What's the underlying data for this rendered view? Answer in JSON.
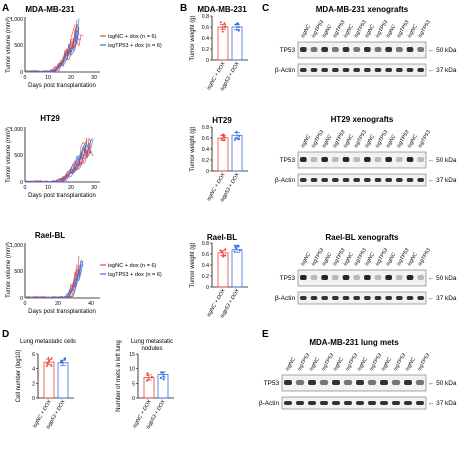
{
  "panels": {
    "A": "A",
    "B": "B",
    "C": "C",
    "D": "D",
    "E": "E"
  },
  "colors": {
    "nc": "#e8453c",
    "tp53": "#3a6fd8",
    "grey": "#888888"
  },
  "growth": {
    "xlabel": "Days post transplantation",
    "ylabel": "Tumor volume (mm³)",
    "legend_nc": "isgNC + dox (n = 6)",
    "legend_tp53": "isgTP53 + dox (n = 6)",
    "charts": [
      {
        "title": "MDA-MB-231",
        "xticks": [
          "0",
          "10",
          "20",
          "30"
        ],
        "yticks": [
          "0",
          "500",
          "1,000"
        ]
      },
      {
        "title": "HT29",
        "xticks": [
          "0",
          "10",
          "20",
          "30"
        ],
        "yticks": [
          "0",
          "500",
          "1,000"
        ]
      },
      {
        "title": "Rael-BL",
        "xticks": [
          "0",
          "20",
          "40"
        ],
        "yticks": [
          "0",
          "500",
          "1,000"
        ]
      }
    ]
  },
  "weight": {
    "ylabel": "Tumor weight (g)",
    "cat_nc": "isgNC + DOX",
    "cat_tp53": "isgp53 + DOX",
    "charts": [
      {
        "title": "MDA-MB-231",
        "yticks": [
          "0",
          "0.2",
          "0.4",
          "0.6",
          "0.8"
        ]
      },
      {
        "title": "HT29",
        "yticks": [
          "0",
          "0.2",
          "0.4",
          "0.6",
          "0.8"
        ]
      },
      {
        "title": "Rael-BL",
        "yticks": [
          "0",
          "0.2",
          "0.4",
          "0.6",
          "0.8"
        ]
      }
    ]
  },
  "chart_data": [
    {
      "type": "bar",
      "title": "MDA-MB-231",
      "ylabel": "Tumor weight (g)",
      "categories": [
        "isgNC + DOX",
        "isgp53 + DOX"
      ],
      "values": [
        0.6,
        0.6
      ],
      "ylim": [
        0,
        0.8
      ]
    },
    {
      "type": "bar",
      "title": "HT29",
      "ylabel": "Tumor weight (g)",
      "categories": [
        "isgNC + DOX",
        "isgp53 + DOX"
      ],
      "values": [
        0.6,
        0.65
      ],
      "ylim": [
        0,
        0.8
      ]
    },
    {
      "type": "bar",
      "title": "Rael-BL",
      "ylabel": "Tumor weight (g)",
      "categories": [
        "isgNC + DOX",
        "isgp53 + DOX"
      ],
      "values": [
        0.62,
        0.68
      ],
      "ylim": [
        0,
        0.8
      ]
    },
    {
      "type": "bar",
      "title": "Lung metastatic cells",
      "ylabel": "Cell number (log10)",
      "categories": [
        "isgNC + DOX",
        "isgp53 + DOX"
      ],
      "values": [
        4.9,
        4.8
      ],
      "ylim": [
        0,
        6
      ]
    },
    {
      "type": "bar",
      "title": "Lung metastatic nodules",
      "ylabel": "Number of mets in left lung",
      "categories": [
        "isgNC + DOX",
        "isgp53 + DOX"
      ],
      "values": [
        7,
        8
      ],
      "ylim": [
        0,
        15
      ]
    }
  ],
  "blots": {
    "lanes_c": [
      "isgNC",
      "isgTP53",
      "isgNC",
      "isgTP53",
      "isgNC",
      "isgTP53",
      "isgNC",
      "isgTP53",
      "isgNC",
      "isgTP53",
      "isgNC",
      "isgTP53"
    ],
    "lanes_e": [
      "isgNC",
      "isgTP53",
      "isgNC",
      "isgTP53",
      "isgNC",
      "isgTP53",
      "isgNC",
      "isgTP53",
      "isgNC",
      "isgTP53",
      "isgNC",
      "isgTP53"
    ],
    "blocks": [
      {
        "title": "MDA-MB-231 xenografts",
        "row1": "TP53",
        "row2": "β-Actin",
        "kda1": "← 50 kDa",
        "kda2": "← 37 kDa"
      },
      {
        "title": "HT29 xenografts",
        "row1": "TP53",
        "row2": "β-Actin",
        "kda1": "← 50 kDa",
        "kda2": "← 37 kDa"
      },
      {
        "title": "Rael-BL xenografts",
        "row1": "TP53",
        "row2": "β-Actin",
        "kda1": "← 50 kDa",
        "kda2": "← 37 kDa"
      },
      {
        "title": "MDA-MB-231 lung mets",
        "row1": "TP53",
        "row2": "β-Actin",
        "kda1": "← 50 kDa",
        "kda2": "← 37 kDa"
      }
    ]
  },
  "mets": {
    "cells_title": "Lung metastatic cells",
    "cells_ylabel": "Cell number (log10)",
    "cells_yticks": [
      "0",
      "2",
      "4",
      "6"
    ],
    "nod_title": "Lung metastatic nodules",
    "nod_ylabel": "Number of mets in left lung",
    "nod_yticks": [
      "0",
      "5",
      "10",
      "15"
    ],
    "cat_nc": "isgNC + DOX",
    "cat_tp53": "isgp53 + DOX"
  }
}
